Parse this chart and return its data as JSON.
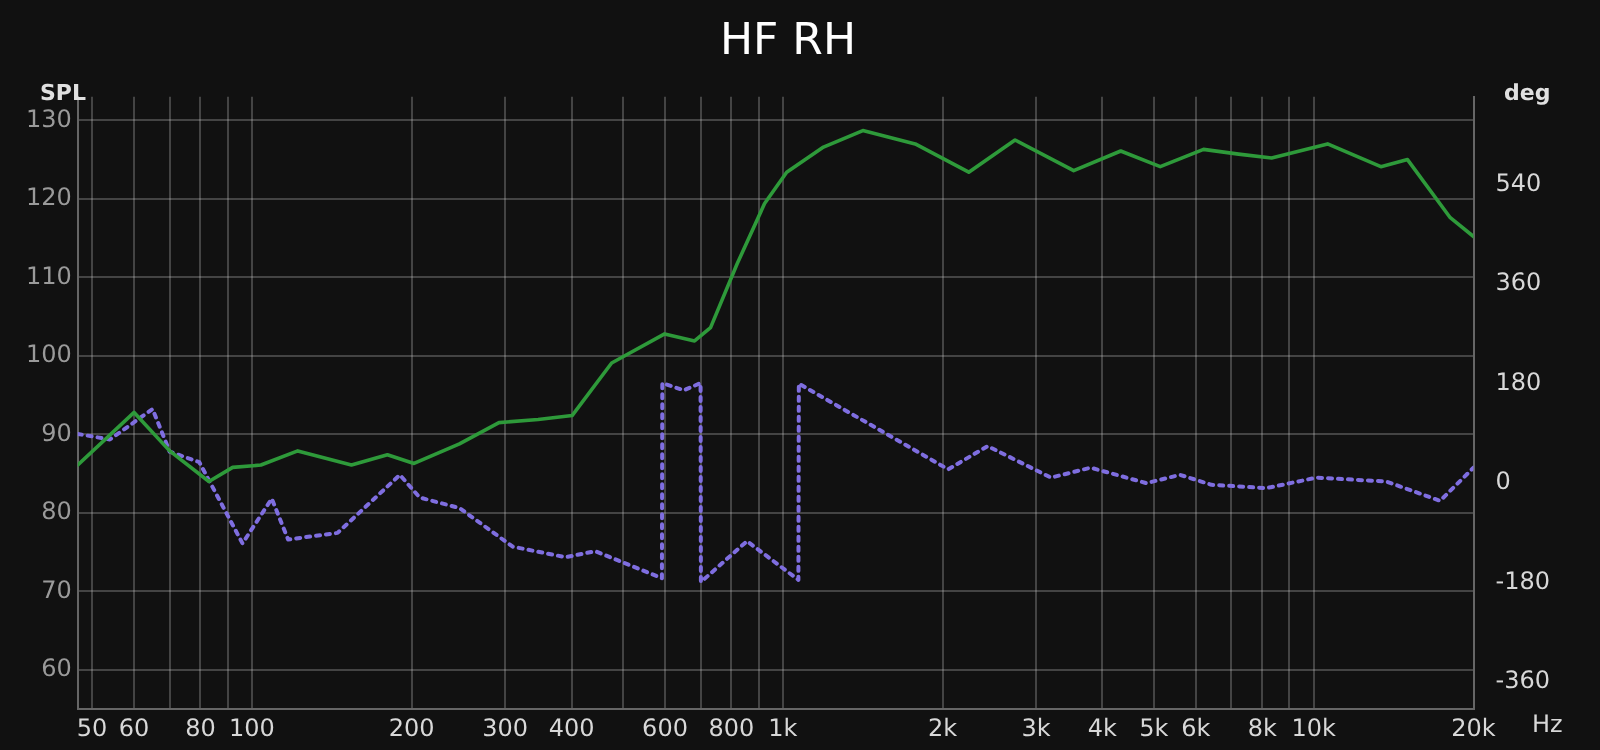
{
  "chart_data": {
    "type": "line",
    "title": "HF RH",
    "ylabel": "SPL",
    "y2label": "deg",
    "xlim": [
      47,
      20000
    ],
    "ylim": [
      55,
      133
    ],
    "y2lim": [
      -409,
      699
    ],
    "log": "x",
    "grid": true,
    "legend": false,
    "marker": "none",
    "xticks": [
      50,
      60,
      {
        "value": 70,
        "label": null
      },
      80,
      {
        "value": 90,
        "label": null
      },
      100,
      200,
      300,
      400,
      {
        "value": 500,
        "label": null
      },
      600,
      {
        "value": 700,
        "label": null
      },
      800,
      {
        "value": 900,
        "label": null
      },
      {
        "value": 1000,
        "label": "1k"
      },
      {
        "value": 2000,
        "label": "2k"
      },
      {
        "value": 3000,
        "label": "3k"
      },
      {
        "value": 4000,
        "label": "4k"
      },
      {
        "value": 5000,
        "label": "5k"
      },
      {
        "value": 6000,
        "label": "6k"
      },
      {
        "value": 7000,
        "label": null
      },
      {
        "value": 8000,
        "label": "8k"
      },
      {
        "value": 9000,
        "label": null
      },
      {
        "value": 10000,
        "label": "10k"
      },
      {
        "value": 20000,
        "label": "20k"
      }
    ],
    "xlabel": "Hz",
    "yticks": [
      60,
      70,
      80,
      90,
      100,
      110,
      120,
      130
    ],
    "y2ticks": [
      -360,
      -180,
      0,
      180,
      360,
      540
    ],
    "series": [
      {
        "color": "#2e9a3a",
        "line_style": "solid",
        "x": [
          47,
          60,
          70,
          83,
          92,
          104,
          122,
          154,
          180,
          202,
          246,
          292,
          346,
          401,
          476,
          599,
          682,
          731,
          820,
          924,
          1017,
          1193,
          1415,
          1776,
          2240,
          2738,
          3531,
          4330,
          5140,
          6200,
          7220,
          8330,
          10620,
          13380,
          15020,
          18080,
          20000
        ],
        "values": [
          86.1,
          92.8,
          87.9,
          84,
          85.8,
          86.1,
          87.9,
          86.1,
          87.4,
          86.3,
          88.8,
          91.5,
          91.9,
          92.4,
          99.1,
          102.8,
          101.9,
          103.6,
          111.7,
          119.4,
          123.4,
          126.6,
          128.7,
          127,
          123.4,
          127.5,
          123.6,
          126.1,
          124.1,
          126.3,
          125.7,
          125.2,
          127,
          124.1,
          125,
          117.6,
          115.2
        ]
      },
      {
        "color": "#7f6ee0",
        "line_style": "dotted",
        "axis": "y2",
        "x": [
          47,
          54,
          65,
          70,
          79.6,
          96,
          109,
          117,
          145,
          190,
          207,
          246,
          310,
          390,
          443,
          592,
          593,
          651,
          700,
          701,
          856,
          1070,
          1072,
          2049,
          2432,
          3200,
          3800,
          4840,
          5600,
          6420,
          8140,
          10130,
          13700,
          17300,
          20000
        ],
        "values": [
          89,
          79,
          134,
          57,
          38,
          -109,
          -28,
          -102,
          -90,
          15,
          -26,
          -45,
          -115,
          -134,
          -123,
          -172,
          181,
          168,
          181,
          -179,
          -105,
          -175,
          180,
          25,
          67,
          10,
          28,
          0,
          15,
          -3,
          -9,
          10,
          3,
          -32,
          28
        ]
      }
    ]
  }
}
